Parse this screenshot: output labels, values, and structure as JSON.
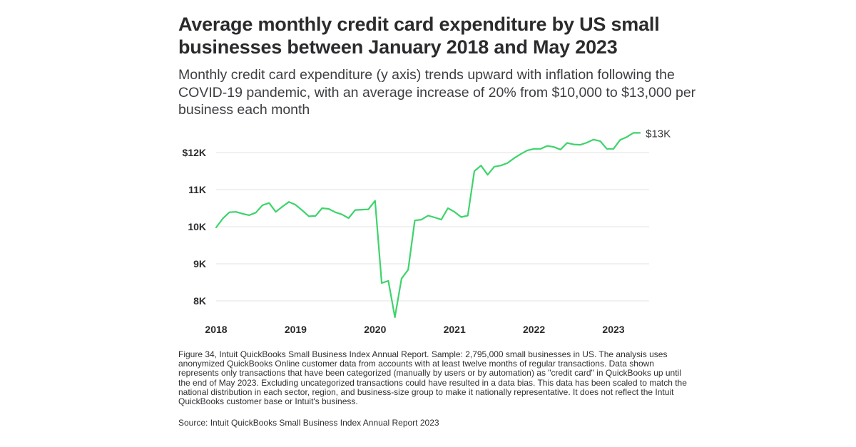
{
  "title": "Average monthly credit card expenditure by US small businesses between January 2018 and May 2023",
  "subtitle": "Monthly credit card expenditure (y axis) trends upward with inflation following the COVID-19 pandemic, with an average increase of 20% from $10,000 to $13,000 per business each month",
  "footnote": "Figure 34, Intuit QuickBooks Small Business Index Annual Report. Sample: 2,795,000 small businesses in US. The analysis uses anonymized QuickBooks Online customer data from accounts with at least twelve months of regular transactions. Data shown represents only transactions that have been categorized (manually by users or by automation) as \"credit card\" in QuickBooks up until the end of May 2023. Excluding uncategorized transactions could have resulted in a data bias. This data has been scaled to match the national distribution in each sector, region, and business-size group to make it nationally representative. It does not reflect the Intuit QuickBooks customer base or Intuit's business.",
  "source": "Source: Intuit QuickBooks Small Business Index Annual Report 2023",
  "colors": {
    "line": "#3dd46b",
    "grid": "#e3e3e3",
    "text": "#2b2b2e"
  },
  "chart_data": {
    "type": "line",
    "title": "Average monthly credit card expenditure by US small businesses between January 2018 and May 2023",
    "xlabel": "",
    "ylabel": "",
    "grid": true,
    "x_start": "2018-01",
    "x_ticks": [
      {
        "label": "2018",
        "index": 0
      },
      {
        "label": "2019",
        "index": 12
      },
      {
        "label": "2020",
        "index": 24
      },
      {
        "label": "2021",
        "index": 36
      },
      {
        "label": "2022",
        "index": 48
      },
      {
        "label": "2023",
        "index": 60
      }
    ],
    "y_ticks": [
      {
        "label": "8K",
        "value": 8000
      },
      {
        "label": "9K",
        "value": 9000
      },
      {
        "label": "10K",
        "value": 10000
      },
      {
        "label": "11K",
        "value": 11000
      },
      {
        "label": "$12K",
        "value": 12000
      }
    ],
    "ylim": [
      7500,
      12800
    ],
    "end_label": "$13K",
    "series": [
      {
        "name": "Average monthly credit card expenditure",
        "values": [
          9980,
          10220,
          10390,
          10400,
          10350,
          10310,
          10380,
          10580,
          10640,
          10400,
          10540,
          10670,
          10590,
          10440,
          10280,
          10290,
          10500,
          10480,
          10390,
          10330,
          10230,
          10450,
          10460,
          10470,
          10700,
          8480,
          8540,
          7560,
          8600,
          8840,
          10170,
          10190,
          10300,
          10250,
          10190,
          10500,
          10400,
          10260,
          10300,
          11500,
          11650,
          11400,
          11620,
          11650,
          11720,
          11850,
          11960,
          12060,
          12100,
          12100,
          12180,
          12150,
          12080,
          12260,
          12220,
          12210,
          12270,
          12350,
          12310,
          12100,
          12100,
          12340,
          12420,
          12530,
          12530
        ]
      }
    ]
  }
}
